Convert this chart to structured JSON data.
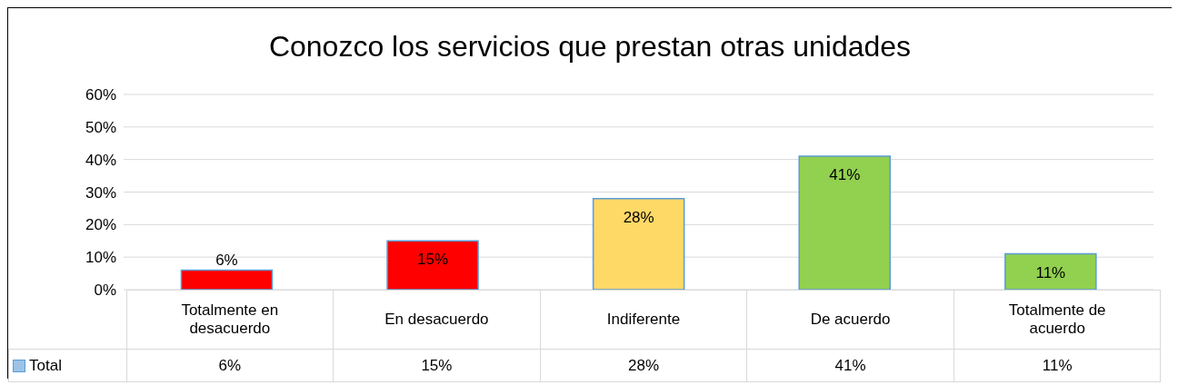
{
  "chart_data": {
    "type": "bar",
    "title": "Conozco los servicios que prestan otras unidades",
    "categories": [
      "Totalmente en desacuerdo",
      "En desacuerdo",
      "Indiferente",
      "De acuerdo",
      "Totalmente de acuerdo"
    ],
    "series": [
      {
        "name": "Total",
        "color": "#9dc3e6",
        "colors": [
          "#ff0000",
          "#ff0000",
          "#ffd966",
          "#92d050",
          "#92d050"
        ],
        "values": [
          6,
          15,
          28,
          41,
          11
        ],
        "value_labels": [
          "6%",
          "15%",
          "28%",
          "41%",
          "11%"
        ]
      }
    ],
    "ylim": [
      0,
      60
    ],
    "yticks": [
      {
        "value": 0,
        "label": "0%"
      },
      {
        "value": 10,
        "label": "10%"
      },
      {
        "value": 20,
        "label": "20%"
      },
      {
        "value": 30,
        "label": "30%"
      },
      {
        "value": 40,
        "label": "40%"
      },
      {
        "value": 50,
        "label": "50%"
      },
      {
        "value": 60,
        "label": "60%"
      }
    ],
    "grid": "y",
    "legend": "bottom"
  }
}
